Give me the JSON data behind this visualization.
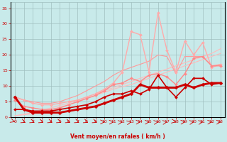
{
  "bg_color": "#c8eaea",
  "grid_color": "#a0c0c0",
  "xlabel": "Vent moyen/en rafales ( km/h )",
  "xlabel_color": "#cc0000",
  "tick_color": "#cc0000",
  "xlim": [
    -0.5,
    23.5
  ],
  "ylim": [
    0,
    37
  ],
  "yticks": [
    0,
    5,
    10,
    15,
    20,
    25,
    30,
    35
  ],
  "xticks": [
    0,
    1,
    2,
    3,
    4,
    5,
    6,
    7,
    8,
    9,
    10,
    11,
    12,
    13,
    14,
    15,
    16,
    17,
    18,
    19,
    20,
    21,
    22,
    23
  ],
  "x": [
    0,
    1,
    2,
    3,
    4,
    5,
    6,
    7,
    8,
    9,
    10,
    11,
    12,
    13,
    14,
    15,
    16,
    17,
    18,
    19,
    20,
    21,
    22,
    23
  ],
  "series": [
    {
      "y": [
        0.5,
        1.0,
        1.5,
        2.2,
        3.0,
        3.8,
        4.5,
        5.5,
        6.5,
        7.5,
        8.5,
        9.5,
        10.5,
        11.5,
        12.5,
        13.5,
        14.5,
        15.5,
        16.5,
        17.5,
        18.5,
        19.5,
        20.5,
        22.0
      ],
      "color": "#ffbbbb",
      "lw": 0.8,
      "marker": null,
      "ms": 0,
      "zorder": 1
    },
    {
      "y": [
        0.5,
        0.8,
        1.2,
        1.8,
        2.5,
        3.2,
        4.0,
        5.0,
        6.0,
        7.0,
        8.0,
        9.0,
        9.8,
        10.5,
        11.5,
        12.5,
        13.5,
        14.5,
        15.5,
        16.5,
        17.5,
        18.5,
        19.5,
        20.5
      ],
      "color": "#ffbbbb",
      "lw": 0.8,
      "marker": null,
      "ms": 0,
      "zorder": 1
    },
    {
      "y": [
        6.5,
        5.5,
        4.5,
        4.0,
        4.0,
        4.5,
        5.0,
        5.5,
        6.5,
        7.5,
        9.0,
        11.0,
        14.5,
        27.5,
        26.5,
        14.5,
        33.5,
        21.5,
        14.5,
        24.5,
        20.0,
        24.0,
        16.0,
        17.0
      ],
      "color": "#ffaaaa",
      "lw": 1.0,
      "marker": "D",
      "ms": 2.0,
      "zorder": 3
    },
    {
      "y": [
        6.5,
        5.5,
        5.0,
        4.5,
        4.5,
        5.0,
        6.0,
        7.0,
        8.5,
        10.0,
        11.5,
        13.5,
        15.0,
        16.0,
        17.0,
        18.0,
        20.0,
        19.5,
        14.0,
        19.5,
        19.5,
        19.5,
        16.5,
        17.0
      ],
      "color": "#ff9999",
      "lw": 0.8,
      "marker": null,
      "ms": 0,
      "zorder": 2
    },
    {
      "y": [
        5.5,
        3.5,
        3.0,
        2.5,
        2.5,
        3.0,
        4.0,
        5.0,
        6.0,
        7.0,
        8.5,
        10.5,
        11.0,
        12.5,
        11.5,
        13.5,
        14.0,
        13.0,
        10.5,
        14.0,
        19.0,
        19.5,
        16.5,
        16.5
      ],
      "color": "#ff8888",
      "lw": 1.0,
      "marker": "D",
      "ms": 2.0,
      "zorder": 3
    },
    {
      "y": [
        6.5,
        2.5,
        1.5,
        1.5,
        1.5,
        1.5,
        2.0,
        2.5,
        3.0,
        3.5,
        4.5,
        5.5,
        6.5,
        7.5,
        10.5,
        9.5,
        9.5,
        9.5,
        9.5,
        10.5,
        9.5,
        10.5,
        11.0,
        11.0
      ],
      "color": "#cc0000",
      "lw": 2.0,
      "marker": "D",
      "ms": 2.5,
      "zorder": 6
    },
    {
      "y": [
        2.5,
        2.5,
        2.0,
        2.0,
        2.0,
        2.5,
        3.0,
        3.5,
        4.0,
        5.0,
        6.5,
        7.5,
        7.5,
        8.5,
        7.5,
        9.0,
        13.5,
        9.5,
        6.5,
        9.5,
        12.5,
        12.5,
        10.5,
        11.0
      ],
      "color": "#cc0000",
      "lw": 1.2,
      "marker": "D",
      "ms": 2.0,
      "zorder": 5
    }
  ],
  "wind_symbol_angles": [
    45,
    40,
    40,
    40,
    40,
    40,
    40,
    40,
    40,
    40,
    90,
    100,
    110,
    120,
    100,
    100,
    110,
    110,
    60,
    100,
    110,
    110,
    100,
    100
  ]
}
